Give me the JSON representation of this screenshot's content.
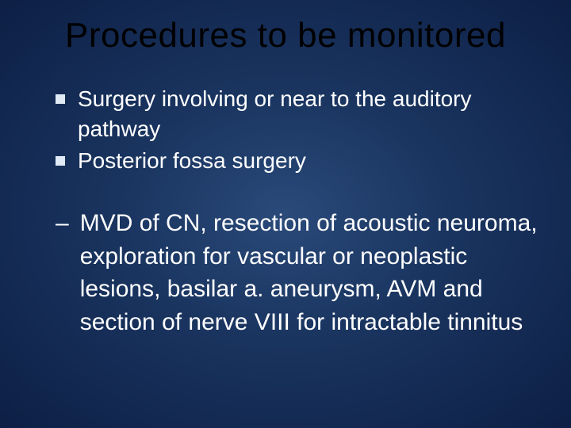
{
  "slide": {
    "title": "Procedures to be monitored",
    "bullets": [
      {
        "text": "Surgery involving or near to the auditory pathway"
      },
      {
        "text": "Posterior fossa surgery"
      }
    ],
    "dash": {
      "marker": "–",
      "text": "MVD of CN, resection of acoustic neuroma, exploration for vascular or neoplastic lesions, basilar a. aneurysm, AVM and section of nerve VIII for intractable tinnitus"
    },
    "style": {
      "title_color": "#000000",
      "text_color": "#ffffff",
      "bullet_color": "#dfeaf5",
      "title_fontsize": 44,
      "bullet_fontsize": 28,
      "dash_fontsize": 30,
      "background_gradient": [
        "#2a4a7a",
        "#1a3560",
        "#0d1f45"
      ]
    }
  }
}
